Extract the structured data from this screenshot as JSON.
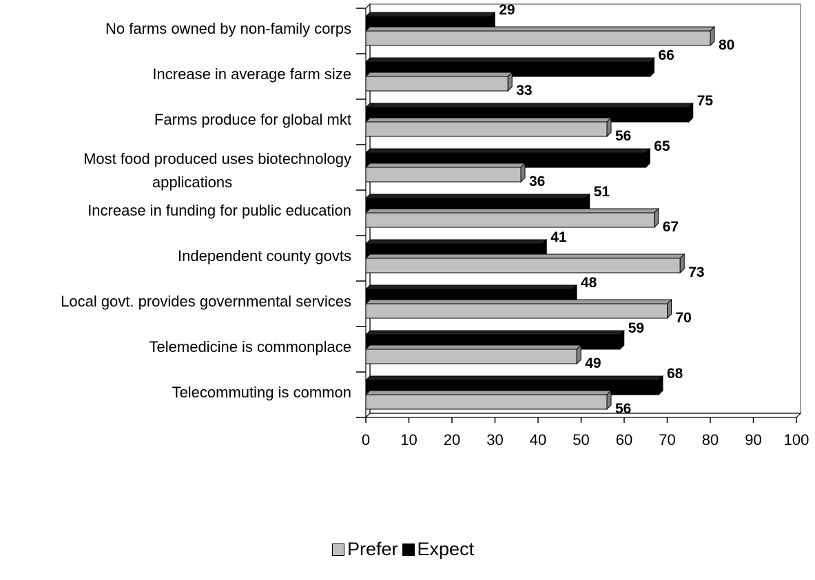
{
  "chart_data": {
    "type": "bar",
    "orientation": "horizontal",
    "categories": [
      "No farms owned by non-family corps",
      "Increase in average farm size",
      "Farms produce for global mkt",
      "Most food produced uses biotechnology applications",
      "Increase in funding for public education",
      "Independent county govts",
      "Local govt. provides governmental services",
      "Telemedicine is commonplace",
      "Telecommuting is common"
    ],
    "category_lines": [
      [
        "No farms owned by non-family corps"
      ],
      [
        "Increase in average farm size"
      ],
      [
        "Farms produce for global mkt"
      ],
      [
        "Most food produced uses biotechnology",
        "applications"
      ],
      [
        "Increase in funding for public education"
      ],
      [
        "Independent county govts"
      ],
      [
        "Local govt. provides governmental services"
      ],
      [
        "Telemedicine is commonplace"
      ],
      [
        "Telecommuting is common"
      ]
    ],
    "series": [
      {
        "name": "Prefer",
        "color": "#c0c0c0",
        "values": [
          80,
          33,
          56,
          36,
          67,
          73,
          70,
          49,
          56
        ]
      },
      {
        "name": "Expect",
        "color": "#000000",
        "values": [
          29,
          66,
          75,
          65,
          51,
          41,
          48,
          59,
          68
        ]
      }
    ],
    "xlim": [
      0,
      100
    ],
    "xticks": [
      "0",
      "10",
      "20",
      "30",
      "40",
      "50",
      "60",
      "70",
      "80",
      "90",
      "100"
    ],
    "grid": false,
    "legend_position": "bottom",
    "three_d": true
  },
  "legend": {
    "prefer_label": "Prefer",
    "expect_label": "Expect"
  }
}
